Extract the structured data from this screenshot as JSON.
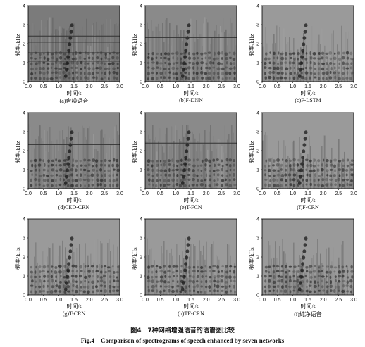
{
  "axes": {
    "y_label": "频率/kHz",
    "x_label": "时间/s",
    "x_ticks": [
      "0.0",
      "0.5",
      "1.0",
      "1.5",
      "2.0",
      "2.5",
      "3.0"
    ],
    "y_ticks": [
      "0",
      "1",
      "2",
      "3",
      "4"
    ]
  },
  "panels": [
    {
      "label": "(a)含噪语音",
      "kind": "noisy"
    },
    {
      "label": "(b)F-DNN",
      "kind": "dnn"
    },
    {
      "label": "(c)F-LSTM",
      "kind": "clean"
    },
    {
      "label": "(d)CED-CRN",
      "kind": "dnn"
    },
    {
      "label": "(e)T-FCN",
      "kind": "fcn"
    },
    {
      "label": "(f)F-CRN",
      "kind": "clean"
    },
    {
      "label": "(g)T-CRN",
      "kind": "clean"
    },
    {
      "label": "(h)TF-CRN",
      "kind": "clean"
    },
    {
      "label": "(i)纯净语音",
      "kind": "pure"
    }
  ],
  "caption": {
    "cn": "图4　7种网络增强语音的语谱图比较",
    "en": "Fig.4　Comparison of spectrograms of speech enhanced by seven networks"
  }
}
